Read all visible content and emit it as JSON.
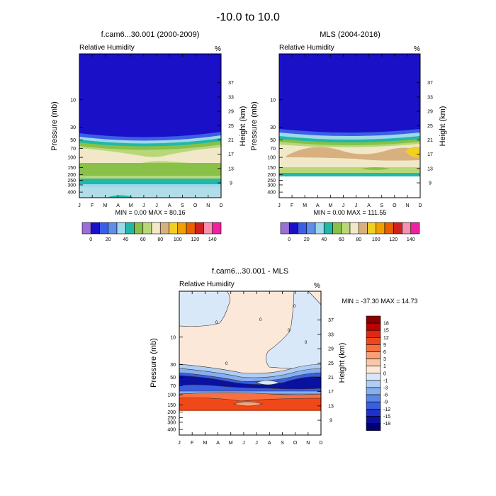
{
  "page_title": "-10.0 to  10.0",
  "months": [
    "J",
    "F",
    "M",
    "A",
    "M",
    "J",
    "J",
    "A",
    "S",
    "O",
    "N",
    "D"
  ],
  "pressure_ticks": [
    "10",
    "30",
    "50",
    "70",
    "100",
    "150",
    "200",
    "250",
    "300",
    "400"
  ],
  "height_ticks": [
    "37",
    "33",
    "29",
    "25",
    "21",
    "17",
    "13",
    "9"
  ],
  "chart_data": [
    {
      "type": "heatmap",
      "title": "f.cam6...30.001 (2000-2009)",
      "left_label": "Relative Humidity",
      "units": "%",
      "ylabel": "Pressure (mb)",
      "y2label": "Height (km)",
      "stats": "MIN =  0.00  MAX = 80.16",
      "colorbar": {
        "labels": [
          "0",
          "20",
          "40",
          "60",
          "80",
          "100",
          "120",
          "140"
        ],
        "colors": [
          "#9b6fd8",
          "#1a10c8",
          "#3c5ee6",
          "#5e8ee8",
          "#9fd8e8",
          "#20b8a8",
          "#88c048",
          "#b8d878",
          "#f0e8c8",
          "#d8b080",
          "#f0d020",
          "#f0a000",
          "#e86000",
          "#d02020",
          "#f890b0",
          "#f020a0"
        ]
      }
    },
    {
      "type": "heatmap",
      "title": "MLS (2004-2016)",
      "left_label": "Relative Humidity",
      "units": "%",
      "ylabel": "Pressure (mb)",
      "y2label": "Height (km)",
      "stats": "MIN =  0.00  MAX = 111.55",
      "colorbar": {
        "labels": [
          "0",
          "20",
          "40",
          "60",
          "80",
          "100",
          "120",
          "140"
        ],
        "colors": [
          "#9b6fd8",
          "#1a10c8",
          "#3c5ee6",
          "#5e8ee8",
          "#9fd8e8",
          "#20b8a8",
          "#88c048",
          "#b8d878",
          "#f0e8c8",
          "#d8b080",
          "#f0d020",
          "#f0a000",
          "#e86000",
          "#d02020",
          "#f890b0",
          "#f020a0"
        ]
      }
    },
    {
      "type": "heatmap",
      "title": "f.cam6...30.001 - MLS",
      "left_label": "Relative Humidity",
      "units": "%",
      "ylabel": "Pressure (mb)",
      "y2label": "Height (km)",
      "stats": "MIN = -37.30  MAX =  14.73",
      "contour_label": "0",
      "colorbar": {
        "labels": [
          "18",
          "15",
          "12",
          "9",
          "6",
          "3",
          "1",
          "0",
          "-1",
          "-3",
          "-6",
          "-9",
          "-12",
          "-15",
          "-18"
        ],
        "colors": [
          "#8b0000",
          "#c00000",
          "#e02810",
          "#f04818",
          "#f87040",
          "#f8a078",
          "#f8c8a8",
          "#fce8d8",
          "#d8e8f8",
          "#b0cef4",
          "#86aef0",
          "#5a86e8",
          "#3a5ee0",
          "#1e32c8",
          "#0a10a0",
          "#000070"
        ]
      }
    }
  ]
}
